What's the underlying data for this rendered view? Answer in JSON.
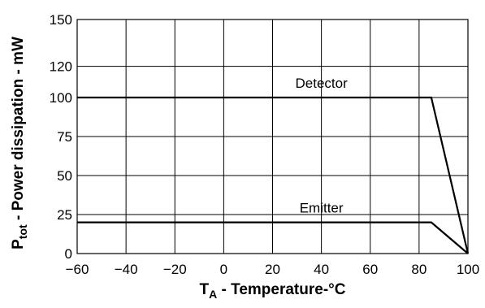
{
  "chart_data": {
    "type": "line",
    "xlabel": {
      "main": "T",
      "sub": "A",
      "rest": " - Temperature-°C"
    },
    "ylabel": {
      "main": "P",
      "sub": "tot",
      "rest": " - Power dissipation - mW"
    },
    "xlim": [
      -60,
      100
    ],
    "ylim": [
      0,
      150
    ],
    "xticks": [
      -60,
      -40,
      -20,
      0,
      20,
      40,
      60,
      80,
      100
    ],
    "yticks": [
      0,
      25,
      50,
      75,
      100,
      120,
      150
    ],
    "xtick_labels": [
      "−60",
      "−40",
      "−20",
      "0",
      "20",
      "40",
      "60",
      "80",
      "100"
    ],
    "ytick_labels": [
      "0",
      "25",
      "50",
      "75",
      "100",
      "120",
      "150"
    ],
    "grid": true,
    "series": [
      {
        "name": "Detector",
        "points": [
          [
            -60,
            100
          ],
          [
            85,
            100
          ],
          [
            100,
            0
          ]
        ],
        "label_at": [
          40,
          100
        ]
      },
      {
        "name": "Emitter",
        "points": [
          [
            -60,
            20
          ],
          [
            85,
            20
          ],
          [
            100,
            0
          ]
        ],
        "label_at": [
          40,
          20
        ]
      }
    ]
  }
}
